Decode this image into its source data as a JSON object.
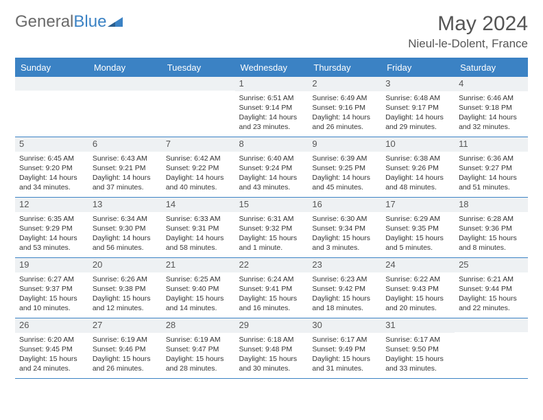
{
  "brand": {
    "part1": "General",
    "part2": "Blue"
  },
  "title": "May 2024",
  "location": "Nieul-le-Dolent, France",
  "colors": {
    "header_bg": "#3b82c4",
    "header_text": "#ffffff",
    "daynum_bg": "#eef1f3",
    "border": "#3b82c4",
    "text": "#333333",
    "title_text": "#555555"
  },
  "weekdays": [
    "Sunday",
    "Monday",
    "Tuesday",
    "Wednesday",
    "Thursday",
    "Friday",
    "Saturday"
  ],
  "weeks": [
    [
      null,
      null,
      null,
      {
        "n": "1",
        "sr": "Sunrise: 6:51 AM",
        "ss": "Sunset: 9:14 PM",
        "dl": "Daylight: 14 hours and 23 minutes."
      },
      {
        "n": "2",
        "sr": "Sunrise: 6:49 AM",
        "ss": "Sunset: 9:16 PM",
        "dl": "Daylight: 14 hours and 26 minutes."
      },
      {
        "n": "3",
        "sr": "Sunrise: 6:48 AM",
        "ss": "Sunset: 9:17 PM",
        "dl": "Daylight: 14 hours and 29 minutes."
      },
      {
        "n": "4",
        "sr": "Sunrise: 6:46 AM",
        "ss": "Sunset: 9:18 PM",
        "dl": "Daylight: 14 hours and 32 minutes."
      }
    ],
    [
      {
        "n": "5",
        "sr": "Sunrise: 6:45 AM",
        "ss": "Sunset: 9:20 PM",
        "dl": "Daylight: 14 hours and 34 minutes."
      },
      {
        "n": "6",
        "sr": "Sunrise: 6:43 AM",
        "ss": "Sunset: 9:21 PM",
        "dl": "Daylight: 14 hours and 37 minutes."
      },
      {
        "n": "7",
        "sr": "Sunrise: 6:42 AM",
        "ss": "Sunset: 9:22 PM",
        "dl": "Daylight: 14 hours and 40 minutes."
      },
      {
        "n": "8",
        "sr": "Sunrise: 6:40 AM",
        "ss": "Sunset: 9:24 PM",
        "dl": "Daylight: 14 hours and 43 minutes."
      },
      {
        "n": "9",
        "sr": "Sunrise: 6:39 AM",
        "ss": "Sunset: 9:25 PM",
        "dl": "Daylight: 14 hours and 45 minutes."
      },
      {
        "n": "10",
        "sr": "Sunrise: 6:38 AM",
        "ss": "Sunset: 9:26 PM",
        "dl": "Daylight: 14 hours and 48 minutes."
      },
      {
        "n": "11",
        "sr": "Sunrise: 6:36 AM",
        "ss": "Sunset: 9:27 PM",
        "dl": "Daylight: 14 hours and 51 minutes."
      }
    ],
    [
      {
        "n": "12",
        "sr": "Sunrise: 6:35 AM",
        "ss": "Sunset: 9:29 PM",
        "dl": "Daylight: 14 hours and 53 minutes."
      },
      {
        "n": "13",
        "sr": "Sunrise: 6:34 AM",
        "ss": "Sunset: 9:30 PM",
        "dl": "Daylight: 14 hours and 56 minutes."
      },
      {
        "n": "14",
        "sr": "Sunrise: 6:33 AM",
        "ss": "Sunset: 9:31 PM",
        "dl": "Daylight: 14 hours and 58 minutes."
      },
      {
        "n": "15",
        "sr": "Sunrise: 6:31 AM",
        "ss": "Sunset: 9:32 PM",
        "dl": "Daylight: 15 hours and 1 minute."
      },
      {
        "n": "16",
        "sr": "Sunrise: 6:30 AM",
        "ss": "Sunset: 9:34 PM",
        "dl": "Daylight: 15 hours and 3 minutes."
      },
      {
        "n": "17",
        "sr": "Sunrise: 6:29 AM",
        "ss": "Sunset: 9:35 PM",
        "dl": "Daylight: 15 hours and 5 minutes."
      },
      {
        "n": "18",
        "sr": "Sunrise: 6:28 AM",
        "ss": "Sunset: 9:36 PM",
        "dl": "Daylight: 15 hours and 8 minutes."
      }
    ],
    [
      {
        "n": "19",
        "sr": "Sunrise: 6:27 AM",
        "ss": "Sunset: 9:37 PM",
        "dl": "Daylight: 15 hours and 10 minutes."
      },
      {
        "n": "20",
        "sr": "Sunrise: 6:26 AM",
        "ss": "Sunset: 9:38 PM",
        "dl": "Daylight: 15 hours and 12 minutes."
      },
      {
        "n": "21",
        "sr": "Sunrise: 6:25 AM",
        "ss": "Sunset: 9:40 PM",
        "dl": "Daylight: 15 hours and 14 minutes."
      },
      {
        "n": "22",
        "sr": "Sunrise: 6:24 AM",
        "ss": "Sunset: 9:41 PM",
        "dl": "Daylight: 15 hours and 16 minutes."
      },
      {
        "n": "23",
        "sr": "Sunrise: 6:23 AM",
        "ss": "Sunset: 9:42 PM",
        "dl": "Daylight: 15 hours and 18 minutes."
      },
      {
        "n": "24",
        "sr": "Sunrise: 6:22 AM",
        "ss": "Sunset: 9:43 PM",
        "dl": "Daylight: 15 hours and 20 minutes."
      },
      {
        "n": "25",
        "sr": "Sunrise: 6:21 AM",
        "ss": "Sunset: 9:44 PM",
        "dl": "Daylight: 15 hours and 22 minutes."
      }
    ],
    [
      {
        "n": "26",
        "sr": "Sunrise: 6:20 AM",
        "ss": "Sunset: 9:45 PM",
        "dl": "Daylight: 15 hours and 24 minutes."
      },
      {
        "n": "27",
        "sr": "Sunrise: 6:19 AM",
        "ss": "Sunset: 9:46 PM",
        "dl": "Daylight: 15 hours and 26 minutes."
      },
      {
        "n": "28",
        "sr": "Sunrise: 6:19 AM",
        "ss": "Sunset: 9:47 PM",
        "dl": "Daylight: 15 hours and 28 minutes."
      },
      {
        "n": "29",
        "sr": "Sunrise: 6:18 AM",
        "ss": "Sunset: 9:48 PM",
        "dl": "Daylight: 15 hours and 30 minutes."
      },
      {
        "n": "30",
        "sr": "Sunrise: 6:17 AM",
        "ss": "Sunset: 9:49 PM",
        "dl": "Daylight: 15 hours and 31 minutes."
      },
      {
        "n": "31",
        "sr": "Sunrise: 6:17 AM",
        "ss": "Sunset: 9:50 PM",
        "dl": "Daylight: 15 hours and 33 minutes."
      },
      null
    ]
  ]
}
